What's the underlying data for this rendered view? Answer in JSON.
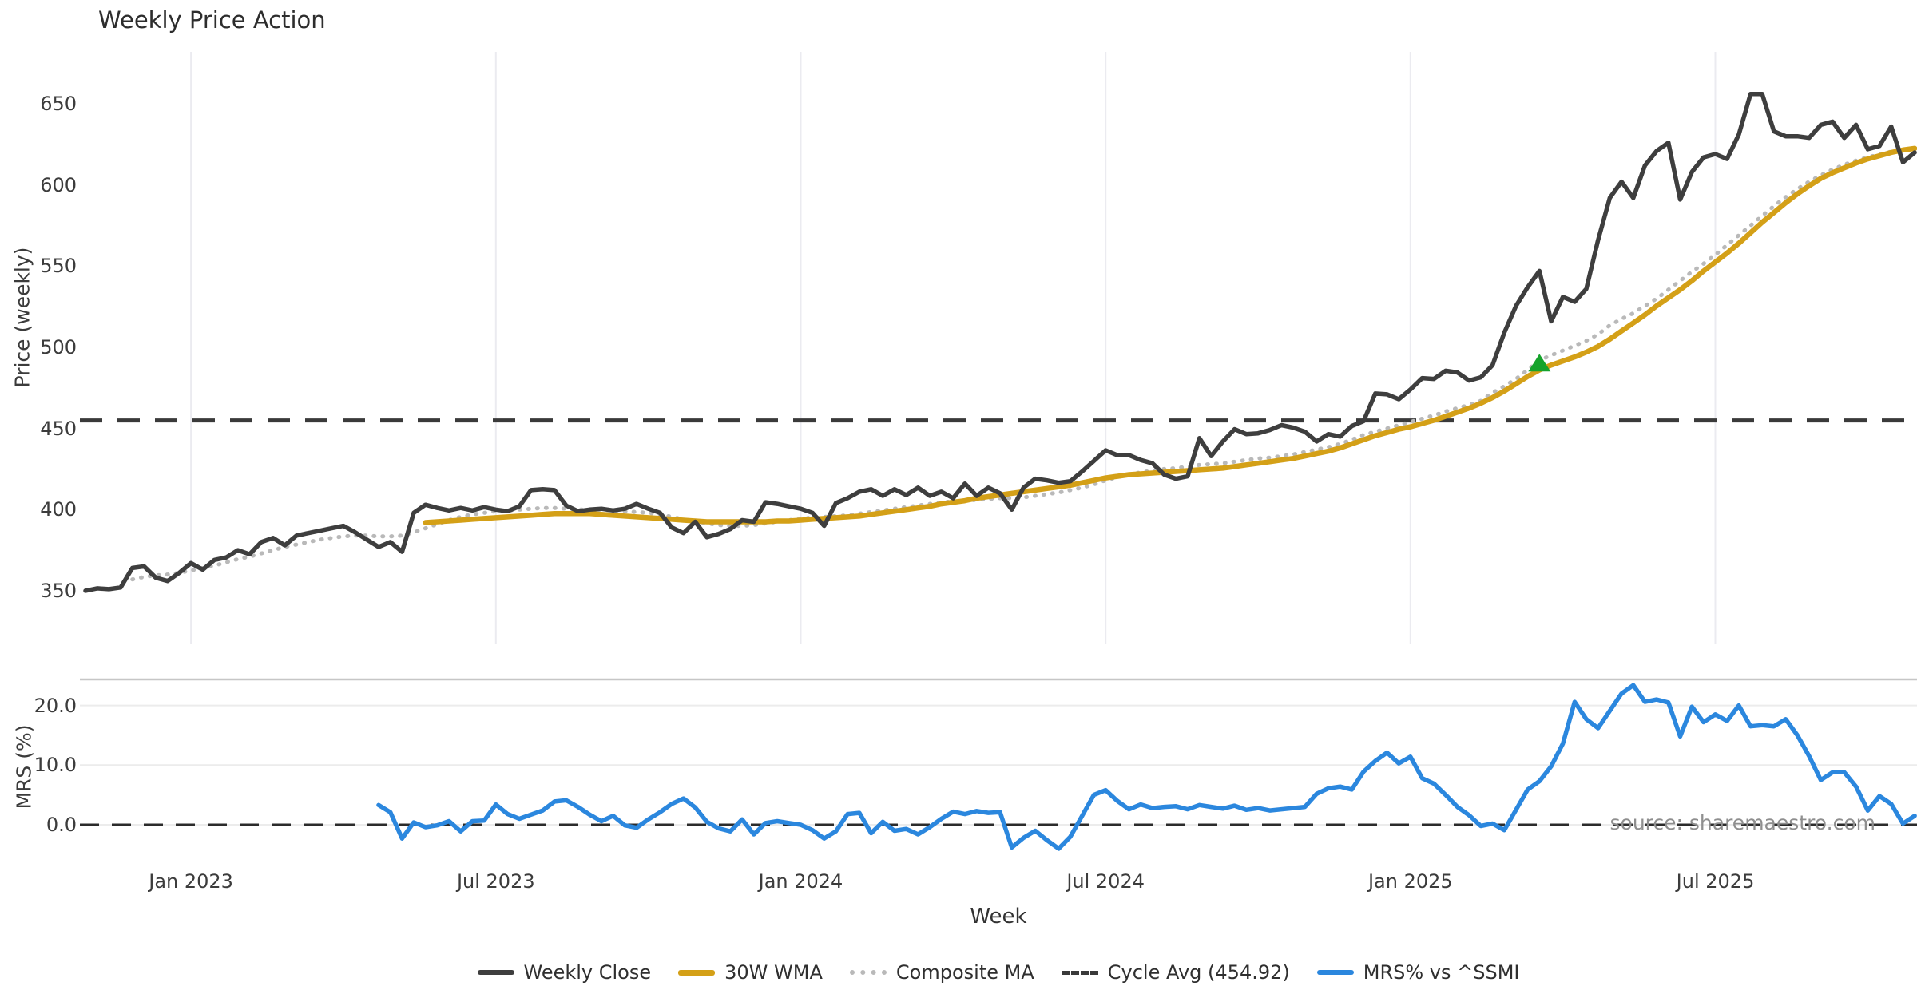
{
  "title": "Weekly Price Action",
  "source_text": "source: sharemaestro.com",
  "axes": {
    "price_ylabel": "Price (weekly)",
    "mrs_ylabel": "MRS (%)",
    "xlabel": "Week",
    "price_ticks": [
      350,
      400,
      450,
      500,
      550,
      600,
      650
    ],
    "mrs_ticks": [
      {
        "value": 0,
        "label": "0.0"
      },
      {
        "value": 10,
        "label": "10.0"
      },
      {
        "value": 20,
        "label": "20.0"
      }
    ]
  },
  "legend": {
    "items": [
      {
        "label": "Weekly Close"
      },
      {
        "label": "30W WMA"
      },
      {
        "label": "Composite MA"
      },
      {
        "label": "Cycle Avg (454.92)"
      },
      {
        "label": "MRS% vs ^SSMI"
      }
    ]
  },
  "colors": {
    "close": "#3e3e3e",
    "wma": "#d4a017",
    "composite": "#b9b9b9",
    "cycle": "#3a3a3a",
    "mrs": "#2b87de",
    "marker": "#16a32c",
    "grid": "#ebebf0",
    "mrs_grid": "#ececec",
    "panel_border": "#c6c6c6",
    "zero_line": "#2b2b2b"
  },
  "chart_data": {
    "type": "line",
    "title": "Weekly Price Action",
    "x_start_date": "2022-10-30",
    "x_frequency": "weekly",
    "n_points": 157,
    "x_ticks": [
      {
        "i": 9,
        "label": "Jan 2023"
      },
      {
        "i": 35,
        "label": "Jul 2023"
      },
      {
        "i": 61,
        "label": "Jan 2024"
      },
      {
        "i": 87,
        "label": "Jul 2024"
      },
      {
        "i": 113,
        "label": "Jan 2025"
      },
      {
        "i": 139,
        "label": "Jul 2025"
      }
    ],
    "price_panel": {
      "ylabel": "Price (weekly)",
      "ylim": [
        318,
        682
      ],
      "yticks": [
        350,
        400,
        450,
        500,
        550,
        600,
        650
      ],
      "cycle_avg": 454.92,
      "marker": {
        "index": 124,
        "value": 490,
        "shape": "triangle-up"
      },
      "series": {
        "weekly_close": [
          350,
          351.5,
          351,
          352,
          364,
          365,
          358,
          356,
          361,
          367,
          363,
          369,
          370.5,
          375,
          372.5,
          380,
          382.5,
          378,
          384,
          385.5,
          387,
          388.5,
          390,
          386,
          381.5,
          377,
          380,
          374,
          398,
          403,
          401,
          399.5,
          401,
          399.5,
          401.5,
          400,
          399,
          402,
          412,
          412.5,
          412,
          402.5,
          399,
          400,
          400.5,
          399.5,
          400.5,
          403.5,
          400.5,
          398,
          389,
          385.5,
          392.5,
          383,
          385,
          388,
          393.5,
          392.5,
          404.5,
          403.5,
          402,
          400.5,
          398,
          390,
          404,
          407,
          411,
          412.5,
          408.5,
          412.5,
          409,
          413.5,
          408.5,
          411,
          407,
          416,
          408.5,
          413.5,
          410,
          400,
          413.5,
          419,
          418,
          416.5,
          417.5,
          423.5,
          430,
          436.5,
          433.5,
          433.5,
          430.5,
          428.5,
          421.5,
          419,
          420.5,
          444,
          433,
          442,
          449.5,
          446.5,
          447,
          449,
          452,
          450.5,
          448,
          442,
          446.5,
          445,
          451.5,
          454.5,
          471.5,
          471,
          468,
          474,
          481,
          480.5,
          485.5,
          484.5,
          479.5,
          481.5,
          489,
          509,
          525.5,
          537,
          547,
          516,
          531,
          528,
          536,
          566,
          592,
          602,
          592,
          612,
          621,
          626,
          591,
          608,
          617,
          619,
          616,
          631,
          656,
          656,
          633,
          630,
          630,
          629,
          637,
          639,
          629,
          637,
          622,
          624,
          636,
          614,
          620
        ],
        "wma_30w": [
          null,
          null,
          null,
          null,
          null,
          null,
          null,
          null,
          null,
          null,
          null,
          null,
          null,
          null,
          null,
          null,
          null,
          null,
          null,
          null,
          null,
          null,
          null,
          null,
          null,
          null,
          null,
          null,
          null,
          392,
          392.5,
          393,
          393.5,
          394,
          394.5,
          395,
          395.5,
          396,
          396.5,
          397,
          397.5,
          397.5,
          397.5,
          397.5,
          397,
          396.5,
          396,
          395.5,
          395,
          394.5,
          394,
          393.5,
          393,
          392.5,
          392.5,
          392.5,
          392.5,
          392.5,
          392.5,
          393,
          393,
          393.5,
          394,
          394.5,
          395,
          395.5,
          396,
          397,
          398,
          399,
          400,
          401,
          402,
          403.5,
          404.5,
          405.5,
          407,
          408,
          409,
          410,
          411,
          412,
          413,
          414,
          415,
          416.5,
          418,
          419.5,
          420.5,
          421.5,
          422,
          422.5,
          423,
          423.5,
          424,
          424.5,
          425,
          425.5,
          426.5,
          427.5,
          428.5,
          429.5,
          430.5,
          431.5,
          433,
          434.5,
          436,
          438,
          440.5,
          443,
          445.5,
          447.5,
          449.5,
          451,
          453,
          455,
          457.5,
          460,
          462.5,
          465.5,
          469,
          473,
          477.5,
          482,
          486,
          489,
          491.5,
          494,
          497,
          500.5,
          505,
          510,
          515,
          520,
          525.5,
          530.5,
          535.5,
          541,
          547,
          552.5,
          558,
          564,
          570.5,
          577,
          583,
          589,
          594.5,
          599.5,
          604,
          607.5,
          610.5,
          613.5,
          616,
          618,
          620,
          621.5,
          622.5
        ],
        "composite_ma": [
          null,
          null,
          null,
          null,
          357,
          358.5,
          359.5,
          360,
          361,
          362.5,
          364,
          365.5,
          367.5,
          369.5,
          371,
          373,
          375,
          377,
          378.5,
          380,
          381.5,
          382.5,
          383.5,
          384,
          384,
          383.5,
          383.5,
          384,
          386,
          388.5,
          391,
          393.5,
          395.5,
          397,
          398,
          399,
          399.5,
          400,
          400.5,
          401,
          401,
          400.5,
          400,
          400,
          400,
          399.5,
          399,
          398.5,
          398,
          397,
          395.5,
          394,
          392.5,
          391.5,
          390.5,
          390,
          390,
          390.5,
          391.5,
          392.5,
          393.5,
          394.5,
          395,
          395.5,
          396,
          396.5,
          397.5,
          398.5,
          399.5,
          400.5,
          401.5,
          402.5,
          403.5,
          404.5,
          405,
          405.5,
          406,
          406.5,
          407,
          407,
          407.5,
          408.5,
          409.5,
          410.5,
          412,
          413.5,
          415.5,
          418,
          420,
          421.5,
          423,
          424,
          425,
          425.5,
          426.5,
          427.5,
          428,
          428.5,
          429.5,
          430.5,
          431.5,
          432,
          433,
          434,
          435.5,
          437,
          438.5,
          440.5,
          443,
          446,
          448,
          450,
          452,
          454,
          456,
          458,
          460.5,
          462.5,
          464.5,
          467,
          472,
          476,
          480.5,
          486,
          492,
          495,
          498,
          501,
          504,
          508,
          513.5,
          517.5,
          521,
          525.5,
          530,
          535.5,
          541,
          546.5,
          551.5,
          557,
          563,
          569,
          575,
          581,
          587,
          592.5,
          597.5,
          602,
          606,
          609.5,
          612.5,
          615,
          617,
          619,
          620.5,
          621.5,
          623
        ]
      }
    },
    "mrs_panel": {
      "ylabel": "MRS (%)",
      "ylim": [
        -5.5,
        24.5
      ],
      "yticks": [
        0,
        10,
        20
      ],
      "zero_line": 0,
      "series": {
        "mrs_pct": [
          null,
          null,
          null,
          null,
          null,
          null,
          null,
          null,
          null,
          null,
          null,
          null,
          null,
          null,
          null,
          null,
          null,
          null,
          null,
          null,
          null,
          null,
          null,
          null,
          null,
          3.3,
          2.1,
          -2.3,
          0.4,
          -0.4,
          -0.1,
          0.6,
          -1.1,
          0.6,
          0.7,
          3.4,
          1.8,
          1.0,
          1.7,
          2.4,
          3.9,
          4.1,
          3.0,
          1.7,
          0.6,
          1.5,
          -0.1,
          -0.5,
          0.9,
          2.1,
          3.5,
          4.4,
          2.9,
          0.5,
          -0.6,
          -1.1,
          0.9,
          -1.6,
          0.3,
          0.6,
          0.3,
          0.0,
          -0.9,
          -2.3,
          -1.1,
          1.8,
          2.0,
          -1.4,
          0.5,
          -1.0,
          -0.7,
          -1.6,
          -0.4,
          1.0,
          2.2,
          1.8,
          2.3,
          2.0,
          2.1,
          -3.8,
          -2.2,
          -1.0,
          -2.6,
          -4.0,
          -2.0,
          1.5,
          5.0,
          5.8,
          4.0,
          2.6,
          3.4,
          2.8,
          3.0,
          3.1,
          2.6,
          3.3,
          3.0,
          2.7,
          3.2,
          2.5,
          2.8,
          2.4,
          2.6,
          2.8,
          3.0,
          5.2,
          6.1,
          6.4,
          5.9,
          8.9,
          10.7,
          12.1,
          10.3,
          11.4,
          7.8,
          6.9,
          5.0,
          3.0,
          1.6,
          -0.2,
          0.2,
          -0.9,
          2.5,
          5.9,
          7.3,
          9.8,
          13.6,
          20.6,
          17.7,
          16.2,
          19.1,
          22.0,
          23.4,
          20.6,
          21.0,
          20.5,
          14.8,
          19.8,
          17.2,
          18.5,
          17.4,
          20.0,
          16.5,
          16.7,
          16.5,
          17.7,
          15.0,
          11.5,
          7.5,
          8.8,
          8.8,
          6.4,
          2.4,
          4.8,
          3.5,
          0.2,
          1.5
        ]
      }
    }
  }
}
